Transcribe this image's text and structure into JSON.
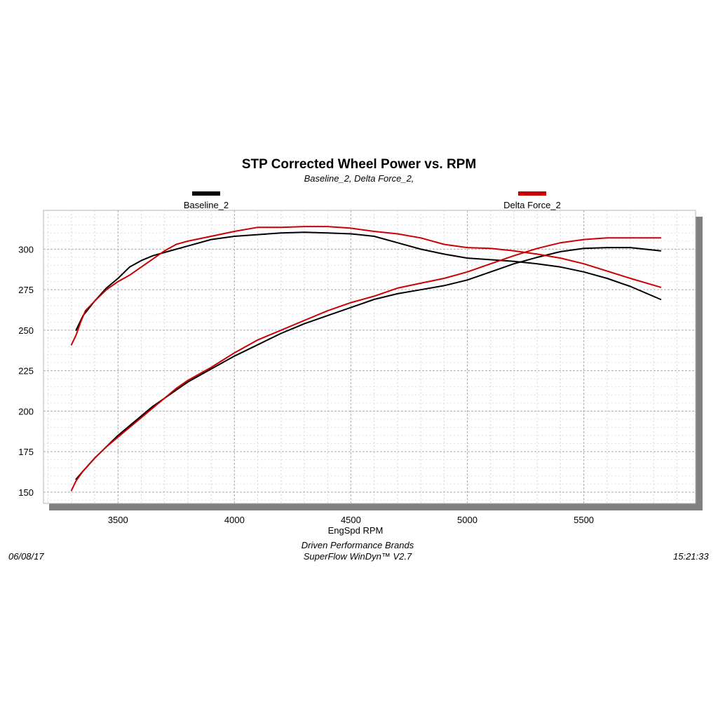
{
  "chart_data": {
    "type": "line",
    "title": "STP Corrected Wheel Power vs. RPM",
    "subtitle": "Baseline_2, Delta Force_2,",
    "xlabel": "EngSpd  RPM",
    "ylabel": "",
    "xlim": [
      3180,
      5980
    ],
    "ylim": [
      143,
      324
    ],
    "xticks": [
      3500,
      4000,
      4500,
      5000,
      5500
    ],
    "yticks": [
      150,
      175,
      200,
      225,
      250,
      275,
      300
    ],
    "grid": true,
    "legend_position": "top",
    "series": [
      {
        "name": "Baseline_2",
        "color": "#000000",
        "curves": {
          "power": {
            "x": [
              3320,
              3350,
              3400,
              3450,
              3500,
              3550,
              3600,
              3650,
              3700,
              3750,
              3800,
              3900,
              4000,
              4100,
              4200,
              4300,
              4400,
              4500,
              4600,
              4700,
              4800,
              4900,
              5000,
              5100,
              5200,
              5300,
              5400,
              5500,
              5600,
              5700,
              5830
            ],
            "y": [
              250,
              259,
              268,
              276,
              282,
              289,
              293,
              296,
              298,
              300,
              302,
              306,
              308,
              309,
              310,
              310.5,
              310,
              309.5,
              308,
              304,
              300,
              297,
              294.5,
              293.5,
              292.5,
              291,
              289,
              286,
              282,
              277,
              269
            ]
          },
          "torque": {
            "x": [
              3320,
              3350,
              3400,
              3450,
              3500,
              3550,
              3600,
              3650,
              3700,
              3750,
              3800,
              3900,
              4000,
              4100,
              4200,
              4300,
              4400,
              4500,
              4600,
              4700,
              4800,
              4900,
              5000,
              5100,
              5200,
              5300,
              5400,
              5500,
              5600,
              5700,
              5830
            ],
            "y": [
              158,
              163,
              171,
              178,
              185,
              191,
              197,
              203,
              208,
              213,
              218,
              226,
              234,
              241,
              248,
              254,
              259,
              264,
              269,
              272.5,
              275,
              277.5,
              281,
              286,
              291,
              295,
              298.5,
              300.5,
              301,
              301,
              299
            ]
          }
        }
      },
      {
        "name": "Delta Force_2",
        "color": "#cc0000",
        "curves": {
          "power": {
            "x": [
              3300,
              3320,
              3340,
              3360,
              3400,
              3450,
              3500,
              3550,
              3600,
              3650,
              3700,
              3750,
              3800,
              3900,
              4000,
              4100,
              4200,
              4300,
              4400,
              4500,
              4600,
              4700,
              4800,
              4900,
              5000,
              5100,
              5200,
              5300,
              5400,
              5500,
              5600,
              5700,
              5830
            ],
            "y": [
              241,
              247,
              255,
              262,
              268,
              275,
              280,
              284,
              289,
              294,
              299,
              303,
              305,
              308,
              311,
              313.5,
              313.5,
              314,
              314,
              313,
              311,
              309.5,
              307,
              303,
              301,
              300.5,
              299,
              297,
              294.5,
              291,
              286.5,
              282,
              276.5
            ]
          },
          "torque": {
            "x": [
              3300,
              3320,
              3350,
              3400,
              3450,
              3500,
              3550,
              3600,
              3650,
              3700,
              3750,
              3800,
              3900,
              4000,
              4100,
              4200,
              4300,
              4400,
              4500,
              4600,
              4700,
              4800,
              4900,
              5000,
              5100,
              5200,
              5300,
              5400,
              5500,
              5600,
              5700,
              5830
            ],
            "y": [
              151,
              157,
              163,
              171,
              178,
              184,
              190,
              196,
              202,
              208,
              214,
              219,
              227,
              236,
              244,
              250,
              256,
              262,
              267,
              271,
              276,
              279,
              282,
              286,
              291,
              296,
              300.5,
              304,
              306,
              307,
              307,
              307
            ]
          }
        }
      }
    ]
  },
  "footer": {
    "date": "06/08/17",
    "company": "Driven Performance Brands",
    "software": "SuperFlow WinDyn™ V2.7",
    "time": "15:21:33"
  }
}
